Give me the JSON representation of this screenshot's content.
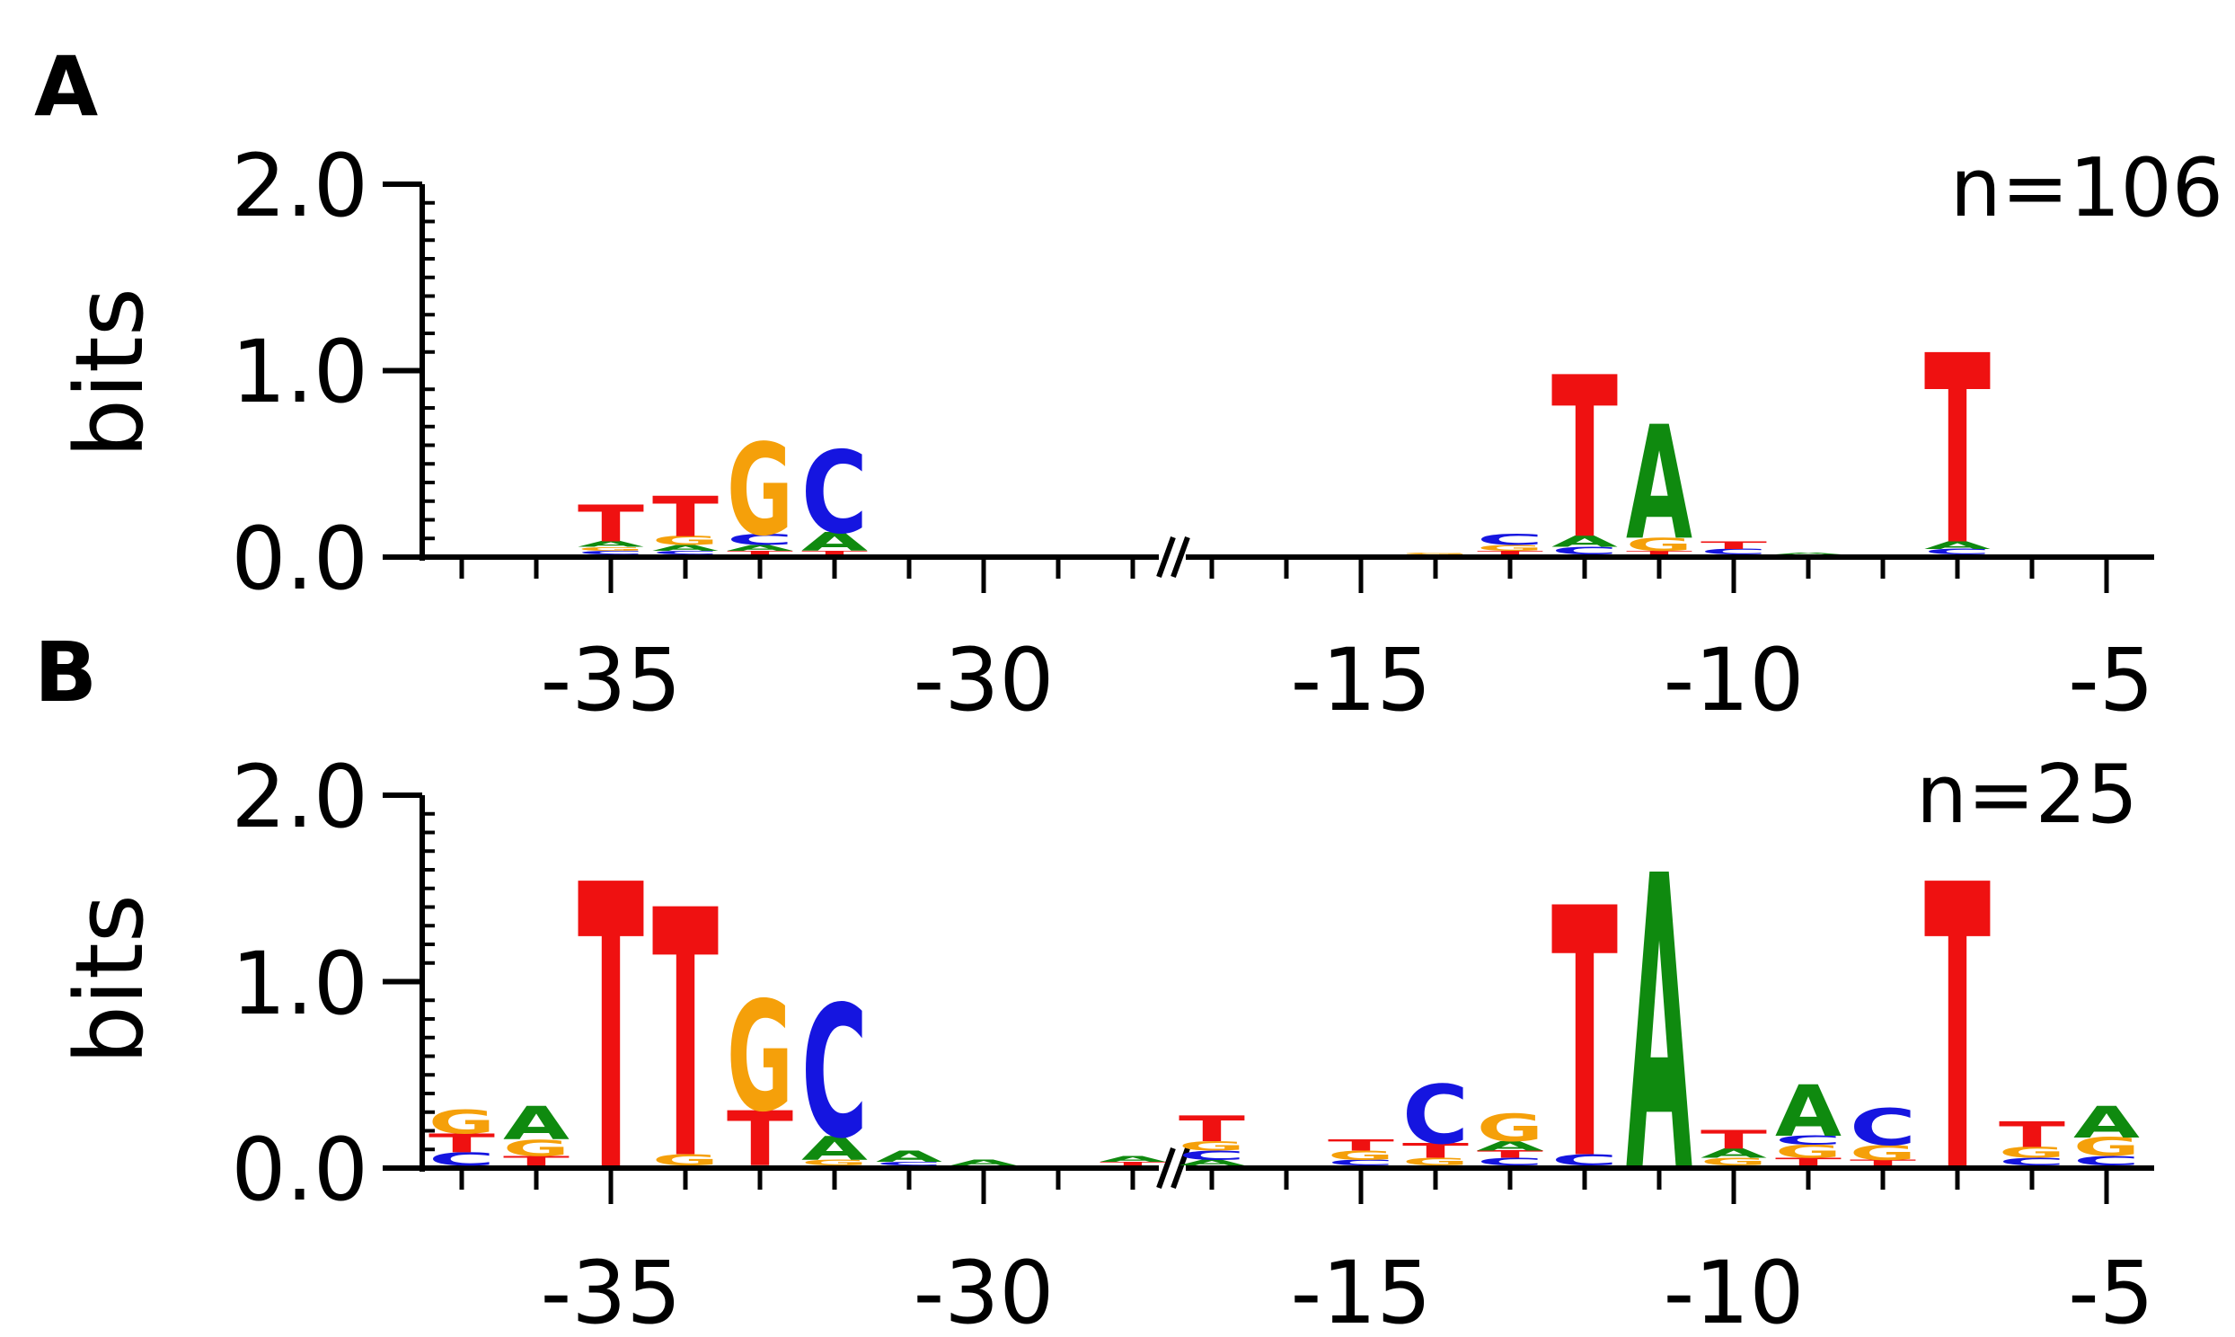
{
  "colors": {
    "A": "#0f8a0f",
    "C": "#1515e0",
    "G": "#f5a00a",
    "T": "#ef1111",
    "axis": "#000000"
  },
  "chart_data": [
    {
      "type": "sequence-logo",
      "panel": "A",
      "count_label": "n=106",
      "ylabel": "bits",
      "ylim": [
        0,
        2.0
      ],
      "ytick_labels": [
        "0.0",
        "1.0",
        "2.0"
      ],
      "xtick_labels": [
        "-35",
        "-30",
        "-15",
        "-10",
        "-5"
      ],
      "axis_break": "between -29 and -17",
      "positions": [
        {
          "pos": -35,
          "letters": [
            {
              "b": "C",
              "h": 0.02
            },
            {
              "b": "G",
              "h": 0.02
            },
            {
              "b": "A",
              "h": 0.03
            },
            {
              "b": "T",
              "h": 0.2
            }
          ]
        },
        {
          "pos": -34,
          "letters": [
            {
              "b": "C",
              "h": 0.02
            },
            {
              "b": "A",
              "h": 0.03
            },
            {
              "b": "G",
              "h": 0.05
            },
            {
              "b": "T",
              "h": 0.22
            }
          ]
        },
        {
          "pos": -33,
          "letters": [
            {
              "b": "T",
              "h": 0.02
            },
            {
              "b": "A",
              "h": 0.03
            },
            {
              "b": "C",
              "h": 0.06
            },
            {
              "b": "G",
              "h": 0.5
            }
          ]
        },
        {
          "pos": -32,
          "letters": [
            {
              "b": "T",
              "h": 0.02
            },
            {
              "b": "A",
              "h": 0.1
            },
            {
              "b": "C",
              "h": 0.45
            }
          ]
        },
        {
          "pos": -14,
          "letters": [
            {
              "b": "G",
              "h": 0.01
            }
          ]
        },
        {
          "pos": -13,
          "letters": [
            {
              "b": "T",
              "h": 0.02
            },
            {
              "b": "G",
              "h": 0.03
            },
            {
              "b": "C",
              "h": 0.06
            }
          ]
        },
        {
          "pos": -12,
          "letters": [
            {
              "b": "C",
              "h": 0.04
            },
            {
              "b": "A",
              "h": 0.06
            },
            {
              "b": "T",
              "h": 0.88
            }
          ]
        },
        {
          "pos": -11,
          "letters": [
            {
              "b": "T",
              "h": 0.02
            },
            {
              "b": "G",
              "h": 0.07
            },
            {
              "b": "A",
              "h": 0.62
            }
          ]
        },
        {
          "pos": -10,
          "letters": [
            {
              "b": "C",
              "h": 0.03
            },
            {
              "b": "T",
              "h": 0.04
            }
          ]
        },
        {
          "pos": -9,
          "letters": [
            {
              "b": "A",
              "h": 0.01
            }
          ]
        },
        {
          "pos": -7,
          "letters": [
            {
              "b": "C",
              "h": 0.03
            },
            {
              "b": "A",
              "h": 0.04
            },
            {
              "b": "T",
              "h": 1.03
            }
          ]
        }
      ]
    },
    {
      "type": "sequence-logo",
      "panel": "B",
      "count_label": "n=25",
      "ylabel": "bits",
      "ylim": [
        0,
        2.0
      ],
      "ytick_labels": [
        "0.0",
        "1.0",
        "2.0"
      ],
      "xtick_labels": [
        "-35",
        "-30",
        "-15",
        "-10",
        "-5"
      ],
      "axis_break": "between -29 and -17",
      "positions": [
        {
          "pos": -37,
          "letters": [
            {
              "b": "C",
              "h": 0.07
            },
            {
              "b": "T",
              "h": 0.1
            },
            {
              "b": "G",
              "h": 0.13
            }
          ]
        },
        {
          "pos": -36,
          "letters": [
            {
              "b": "T",
              "h": 0.05
            },
            {
              "b": "G",
              "h": 0.09
            },
            {
              "b": "A",
              "h": 0.18
            }
          ]
        },
        {
          "pos": -35,
          "letters": [
            {
              "b": "T",
              "h": 1.55
            }
          ]
        },
        {
          "pos": -34,
          "letters": [
            {
              "b": "G",
              "h": 0.06
            },
            {
              "b": "T",
              "h": 1.35
            }
          ]
        },
        {
          "pos": -33,
          "letters": [
            {
              "b": "T",
              "h": 0.3
            },
            {
              "b": "G",
              "h": 0.6
            }
          ]
        },
        {
          "pos": -32,
          "letters": [
            {
              "b": "G",
              "h": 0.03
            },
            {
              "b": "A",
              "h": 0.13
            },
            {
              "b": "C",
              "h": 0.72
            }
          ]
        },
        {
          "pos": -31,
          "letters": [
            {
              "b": "C",
              "h": 0.02
            },
            {
              "b": "A",
              "h": 0.06
            }
          ]
        },
        {
          "pos": -30,
          "letters": [
            {
              "b": "A",
              "h": 0.03
            }
          ]
        },
        {
          "pos": -28,
          "letters": [
            {
              "b": "T",
              "h": 0.02
            },
            {
              "b": "A",
              "h": 0.03
            }
          ]
        },
        {
          "pos": -17,
          "letters": [
            {
              "b": "A",
              "h": 0.03
            },
            {
              "b": "C",
              "h": 0.05
            },
            {
              "b": "G",
              "h": 0.05
            },
            {
              "b": "T",
              "h": 0.14
            }
          ]
        },
        {
          "pos": -15,
          "letters": [
            {
              "b": "C",
              "h": 0.03
            },
            {
              "b": "G",
              "h": 0.05
            },
            {
              "b": "T",
              "h": 0.06
            }
          ]
        },
        {
          "pos": -14,
          "letters": [
            {
              "b": "G",
              "h": 0.04
            },
            {
              "b": "T",
              "h": 0.08
            },
            {
              "b": "C",
              "h": 0.32
            }
          ]
        },
        {
          "pos": -13,
          "letters": [
            {
              "b": "C",
              "h": 0.04
            },
            {
              "b": "T",
              "h": 0.04
            },
            {
              "b": "A",
              "h": 0.05
            },
            {
              "b": "G",
              "h": 0.15
            }
          ]
        },
        {
          "pos": -12,
          "letters": [
            {
              "b": "C",
              "h": 0.06
            },
            {
              "b": "T",
              "h": 1.36
            }
          ]
        },
        {
          "pos": -11,
          "letters": [
            {
              "b": "A",
              "h": 1.6
            }
          ]
        },
        {
          "pos": -10,
          "letters": [
            {
              "b": "G",
              "h": 0.04
            },
            {
              "b": "A",
              "h": 0.05
            },
            {
              "b": "T",
              "h": 0.1
            }
          ]
        },
        {
          "pos": -9,
          "letters": [
            {
              "b": "T",
              "h": 0.04
            },
            {
              "b": "G",
              "h": 0.07
            },
            {
              "b": "C",
              "h": 0.05
            },
            {
              "b": "A",
              "h": 0.28
            }
          ]
        },
        {
          "pos": -8,
          "letters": [
            {
              "b": "T",
              "h": 0.03
            },
            {
              "b": "G",
              "h": 0.08
            },
            {
              "b": "C",
              "h": 0.2
            }
          ]
        },
        {
          "pos": -7,
          "letters": [
            {
              "b": "T",
              "h": 1.55
            }
          ]
        },
        {
          "pos": -6,
          "letters": [
            {
              "b": "C",
              "h": 0.04
            },
            {
              "b": "G",
              "h": 0.06
            },
            {
              "b": "T",
              "h": 0.14
            }
          ]
        },
        {
          "pos": -5,
          "letters": [
            {
              "b": "C",
              "h": 0.05
            },
            {
              "b": "G",
              "h": 0.1
            },
            {
              "b": "A",
              "h": 0.17
            }
          ]
        }
      ]
    }
  ]
}
